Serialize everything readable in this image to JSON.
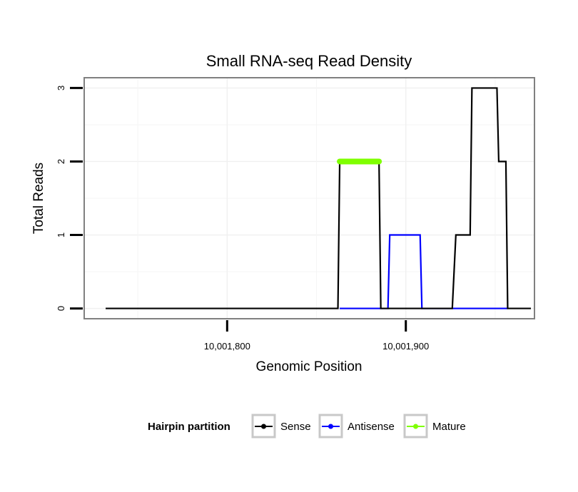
{
  "chart_data": {
    "type": "line",
    "title": "Small RNA-seq Read Density",
    "xlabel": "Genomic Position",
    "ylabel": "Total Reads",
    "xlim": [
      10001720,
      10001972
    ],
    "ylim": [
      -0.14,
      3.14
    ],
    "x_ticks": [
      {
        "value": 10001800,
        "label": "10,001,800"
      },
      {
        "value": 10001900,
        "label": "10,001,900"
      }
    ],
    "y_ticks": [
      {
        "value": 0,
        "label": "0"
      },
      {
        "value": 1,
        "label": "1"
      },
      {
        "value": 2,
        "label": "2"
      },
      {
        "value": 3,
        "label": "3"
      }
    ],
    "grid": true,
    "legend": {
      "title": "Hairpin partition",
      "placement": "bottom",
      "entries": [
        {
          "label": "Sense",
          "color": "#000000"
        },
        {
          "label": "Antisense",
          "color": "#0000ff"
        },
        {
          "label": "Mature",
          "color": "#7fff00"
        }
      ]
    },
    "series": [
      {
        "name": "Sense",
        "color": "#000000",
        "points": [
          [
            10001732,
            0
          ],
          [
            10001862,
            0
          ],
          [
            10001863,
            2
          ],
          [
            10001885,
            2
          ],
          [
            10001886,
            0
          ],
          [
            10001926,
            0
          ],
          [
            10001928,
            1
          ],
          [
            10001936,
            1
          ],
          [
            10001937,
            3
          ],
          [
            10001951,
            3
          ],
          [
            10001952,
            2
          ],
          [
            10001956,
            2
          ],
          [
            10001957,
            0
          ],
          [
            10001970,
            0
          ]
        ]
      },
      {
        "name": "Antisense",
        "color": "#0000ff",
        "points": [
          [
            10001863,
            0
          ],
          [
            10001890,
            0
          ],
          [
            10001891,
            1
          ],
          [
            10001908,
            1
          ],
          [
            10001909,
            0
          ],
          [
            10001957,
            0
          ]
        ]
      },
      {
        "name": "Mature",
        "color": "#7fff00",
        "points": [
          [
            10001863,
            2
          ],
          [
            10001885,
            2
          ]
        ]
      }
    ]
  }
}
